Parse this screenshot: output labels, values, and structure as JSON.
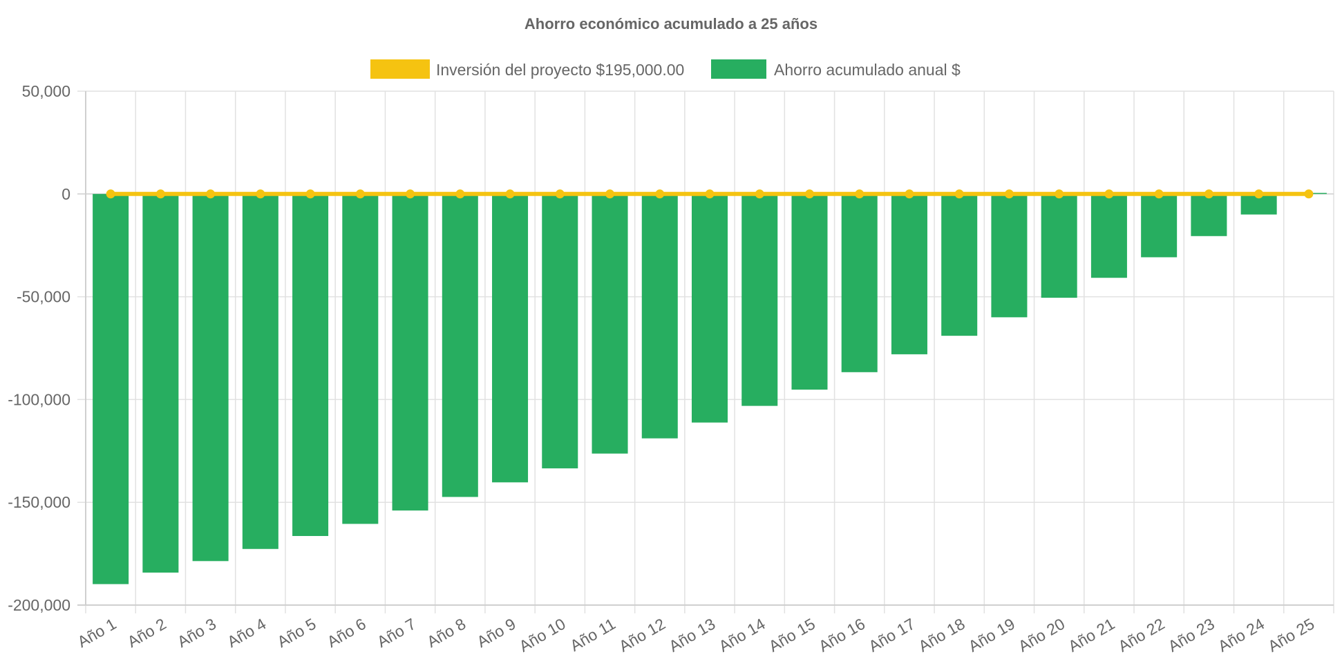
{
  "chart_data": {
    "type": "bar",
    "title": "Ahorro económico acumulado a 25 años",
    "categories": [
      "Año 1",
      "Año 2",
      "Año 3",
      "Año 4",
      "Año 5",
      "Año 6",
      "Año 7",
      "Año 8",
      "Año 9",
      "Año 10",
      "Año 11",
      "Año 12",
      "Año 13",
      "Año 14",
      "Año 15",
      "Año 16",
      "Año 17",
      "Año 18",
      "Año 19",
      "Año 20",
      "Año 21",
      "Año 22",
      "Año 23",
      "Año 24",
      "Año 25"
    ],
    "series": [
      {
        "name": "Inversión del proyecto $195,000.00",
        "type": "line",
        "color": "#f5c311",
        "values": [
          0,
          0,
          0,
          0,
          0,
          0,
          0,
          0,
          0,
          0,
          0,
          0,
          0,
          0,
          0,
          0,
          0,
          0,
          0,
          0,
          0,
          0,
          0,
          0,
          0
        ]
      },
      {
        "name": "Ahorro acumulado anual $",
        "type": "bar",
        "color": "#27ae60",
        "values": [
          -189800,
          -184200,
          -178600,
          -172700,
          -166400,
          -160500,
          -154000,
          -147400,
          -140300,
          -133500,
          -126300,
          -118900,
          -111200,
          -103100,
          -95200,
          -86700,
          -78000,
          -69000,
          -60000,
          -50500,
          -40800,
          -30800,
          -20500,
          -10000,
          500
        ]
      }
    ],
    "xlabel": "",
    "ylabel": "",
    "ylim": [
      -200000,
      50000
    ],
    "yticks": [
      50000,
      0,
      -50000,
      -100000,
      -150000,
      -200000
    ],
    "ytick_labels": [
      "50,000",
      "0",
      "-50,000",
      "-100,000",
      "-150,000",
      "-200,000"
    ],
    "grid": true,
    "legend_position": "top-center"
  }
}
